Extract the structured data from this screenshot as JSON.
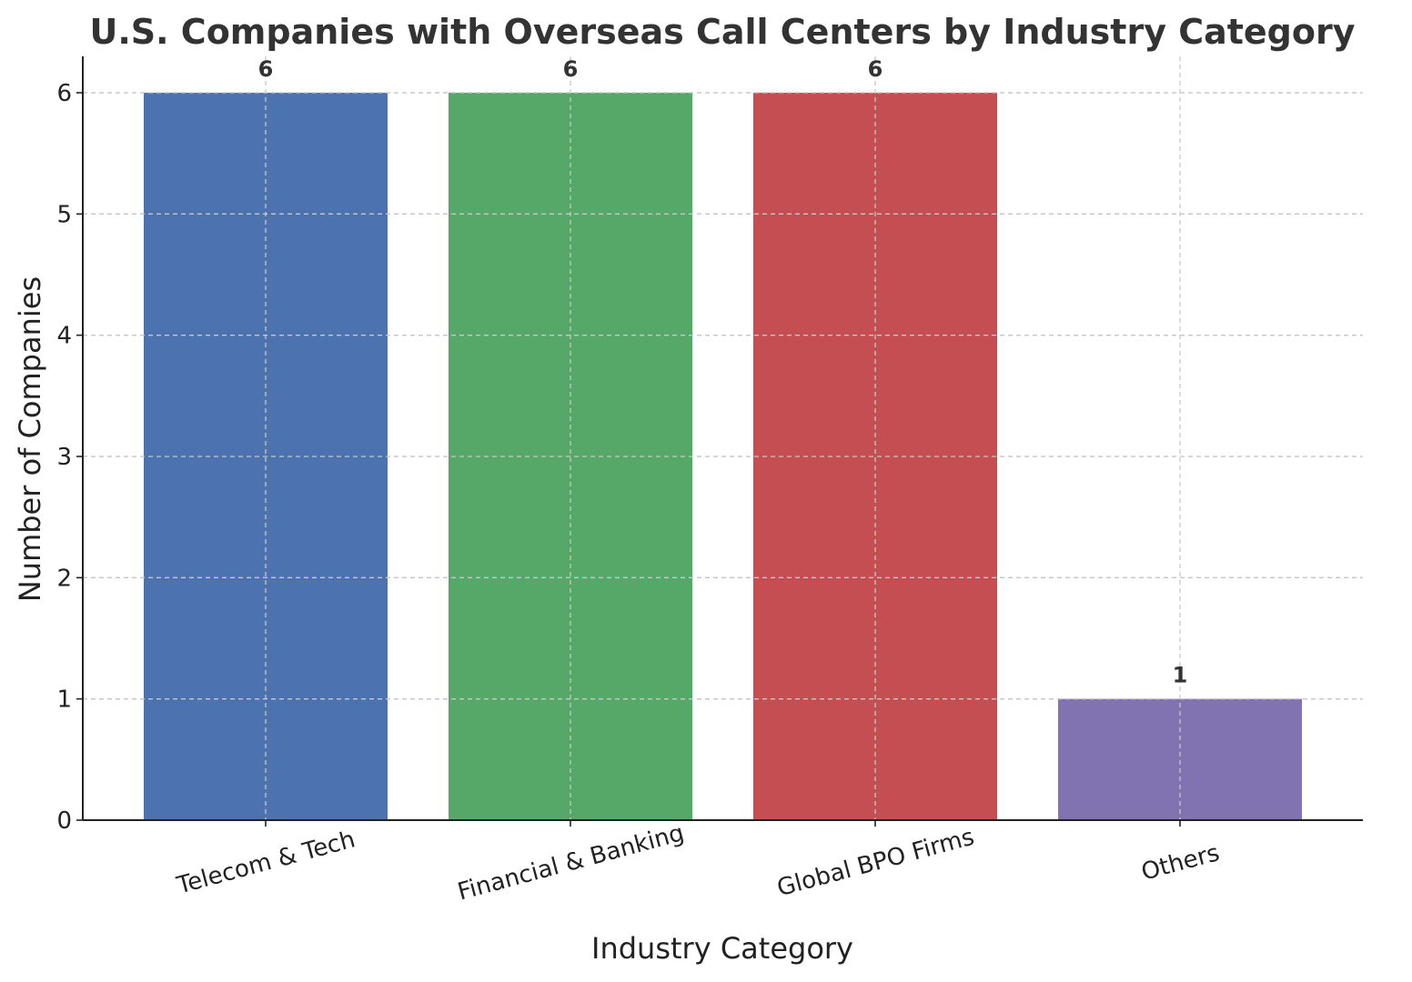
{
  "chart_data": {
    "type": "bar",
    "title": "U.S. Companies with Overseas Call Centers by Industry Category",
    "xlabel": "Industry Category",
    "ylabel": "Number of Companies",
    "categories": [
      "Telecom & Tech",
      "Financial & Banking",
      "Global BPO Firms",
      "Others"
    ],
    "values": [
      6,
      6,
      6,
      1
    ],
    "data_labels": [
      "6",
      "6",
      "6",
      "1"
    ],
    "colors": [
      "#4c72b0",
      "#55a868",
      "#c44e52",
      "#8172b2"
    ],
    "ylim": [
      0,
      6.3
    ],
    "yticks": [
      0,
      1,
      2,
      3,
      4,
      5,
      6
    ],
    "ytick_labels": [
      "0",
      "1",
      "2",
      "3",
      "4",
      "5",
      "6"
    ],
    "grid": true,
    "xtick_rotation": "slanted"
  }
}
